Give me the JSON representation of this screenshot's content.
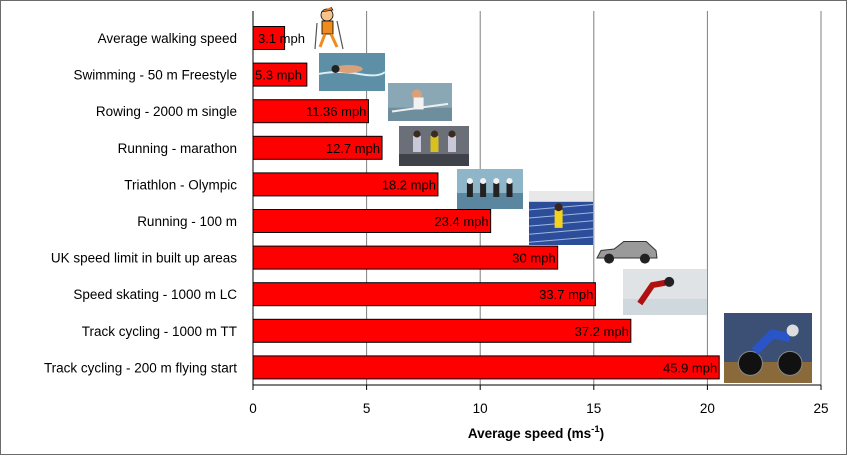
{
  "chart_data": {
    "type": "bar",
    "orientation": "horizontal",
    "categories": [
      "Average walking speed",
      "Swimming - 50 m Freestyle",
      "Rowing - 2000 m single",
      "Running - marathon",
      "Triathlon - Olympic",
      "Running - 100 m",
      "UK speed limit in built up areas",
      "Speed skating - 1000 m LC",
      "Track cycling - 1000 m TT",
      "Track cycling - 200 m flying start"
    ],
    "values": [
      1.39,
      2.37,
      5.08,
      5.68,
      8.14,
      10.46,
      13.41,
      15.07,
      16.63,
      20.52
    ],
    "data_labels": [
      "3.1 mph",
      "5.3 mph",
      "11.36 mph",
      "12.7 mph",
      "18.2 mph",
      "23.4 mph",
      "30 mph",
      "33.7 mph",
      "37.2 mph",
      "45.9 mph"
    ],
    "pictures": [
      "walker-figure-icon",
      "swimmer-photo",
      "rower-photo",
      "marathon-runners-photo",
      "triathlon-photo",
      "sprinter-photo",
      "car-photo",
      "speed-skater-photo",
      "track-cyclist-photo",
      "flying-start-cyclist-photo"
    ],
    "xlim": [
      0,
      25
    ],
    "xticks": [
      "0",
      "5",
      "10",
      "15",
      "20",
      "25"
    ],
    "xlabel": "Average speed (ms",
    "xlabel_sup": "-1",
    "xlabel_end": ")",
    "ylabel": "",
    "title": "",
    "grid": "vertical major gridlines",
    "legend": "none",
    "bar_color": "#ff0000",
    "bar_edge_color": "#000000",
    "grid_color": "#7f7f7f"
  }
}
